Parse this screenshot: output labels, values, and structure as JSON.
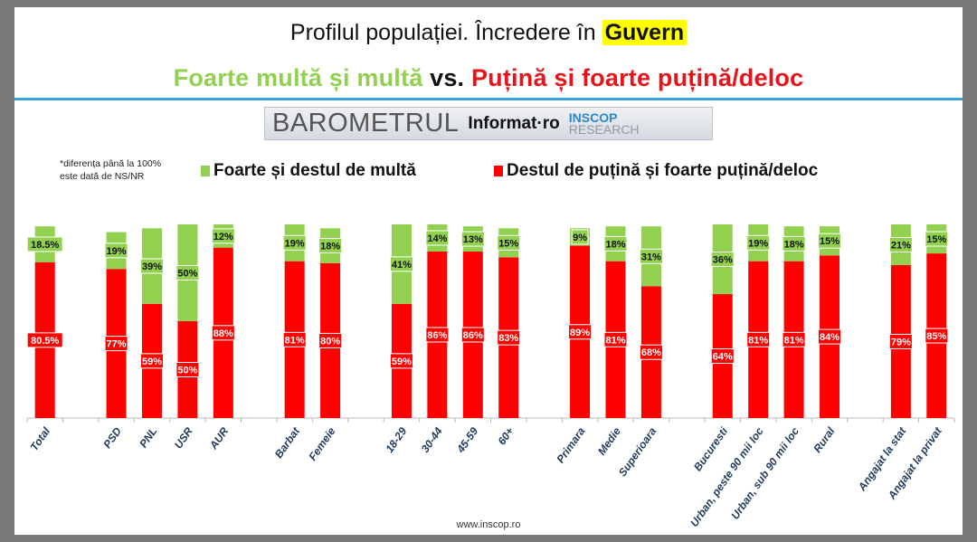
{
  "title": {
    "prefix": "Profilul populației. Încredere în ",
    "highlight": "Guvern"
  },
  "subtitle": {
    "green": "Foarte multă și multă",
    "vs": " vs. ",
    "red": "Puțină și foarte puțină/deloc"
  },
  "logo": {
    "barometru": "BAROMETRUL",
    "informat": "Informat·ro",
    "inscop": "INSCOP",
    "research": "RESEARCH"
  },
  "note": [
    "*diferența până la 100%",
    "este dată de NS/NR"
  ],
  "footer": "www.inscop.ro",
  "colors": {
    "green": "#92d050",
    "red": "#ff0000",
    "label": "#1f3a5a"
  },
  "chart_data": {
    "type": "bar",
    "stacked": true,
    "ylim": [
      0,
      100
    ],
    "categories": [
      "Total",
      "",
      "PSD",
      "PNL",
      "USR",
      "AUR",
      "",
      "Barbat",
      "Femeie",
      "",
      "18-29",
      "30-44",
      "45-59",
      "60+",
      "",
      "Primara",
      "Medie",
      "Superioara",
      "",
      "Bucuresti",
      "Urban, peste 90 mii loc",
      "Urban, sub 90 mii loc",
      "Rural",
      "",
      "Angajat la stat",
      "Angajat la privat"
    ],
    "series": [
      {
        "name": "Destul de puțină și foarte puțină/deloc",
        "color": "#ff0000",
        "values": [
          80.5,
          null,
          77,
          59,
          50,
          88,
          null,
          81,
          80,
          null,
          59,
          86,
          86,
          83,
          null,
          89,
          81,
          68,
          null,
          64,
          81,
          81,
          84,
          null,
          79,
          85
        ],
        "labels": [
          "80.5%",
          "",
          "77%",
          "59%",
          "50%",
          "88%",
          "",
          "81%",
          "80%",
          "",
          "59%",
          "86%",
          "86%",
          "83%",
          "",
          "89%",
          "81%",
          "68%",
          "",
          "64%",
          "81%",
          "81%",
          "84%",
          "",
          "79%",
          "85%"
        ]
      },
      {
        "name": "Foarte și destul de multă",
        "color": "#92d050",
        "values": [
          18.5,
          null,
          19,
          39,
          50,
          12,
          null,
          19,
          18,
          null,
          41,
          14,
          13,
          15,
          null,
          9,
          18,
          31,
          null,
          36,
          19,
          18,
          15,
          null,
          21,
          15
        ],
        "labels": [
          "18.5%",
          "",
          "19%",
          "39%",
          "50%",
          "12%",
          "",
          "19%",
          "18%",
          "",
          "41%",
          "14%",
          "13%",
          "15%",
          "",
          "9%",
          "18%",
          "31%",
          "",
          "36%",
          "19%",
          "18%",
          "15%",
          "",
          "21%",
          "15%"
        ]
      }
    ]
  }
}
